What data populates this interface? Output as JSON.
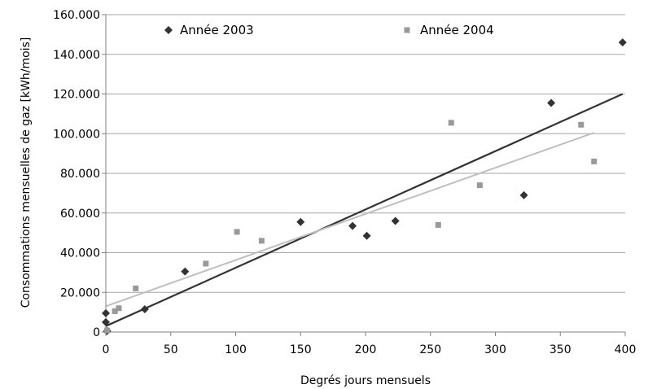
{
  "chart_data": {
    "type": "scatter",
    "xlabel": "Degrés jours mensuels",
    "ylabel": "Consommations mensuelles de gaz [kWh/mois]",
    "xlim": [
      0,
      400
    ],
    "ylim": [
      0,
      160000
    ],
    "x_ticks": [
      0,
      50,
      100,
      150,
      200,
      250,
      300,
      350,
      400
    ],
    "x_tick_labels": [
      "0",
      "50",
      "100",
      "150",
      "200",
      "250",
      "300",
      "350",
      "400"
    ],
    "y_ticks": [
      0,
      20000,
      40000,
      60000,
      80000,
      100000,
      120000,
      140000,
      160000
    ],
    "y_tick_labels": [
      "0",
      "20.000",
      "40.000",
      "60.000",
      "80.000",
      "100.000",
      "120.000",
      "140.000",
      "160.000"
    ],
    "grid": "horizontal",
    "legend_placement": "top",
    "series": [
      {
        "name": "Année 2003",
        "marker": "diamond",
        "color": "#333333",
        "points": [
          [
            0,
            9500
          ],
          [
            0,
            5000
          ],
          [
            1,
            500
          ],
          [
            30,
            11500
          ],
          [
            61,
            30500
          ],
          [
            150,
            55500
          ],
          [
            190,
            53500
          ],
          [
            201,
            48500
          ],
          [
            223,
            56000
          ],
          [
            322,
            69000
          ],
          [
            343,
            115500
          ],
          [
            398,
            146000
          ]
        ],
        "trendline": [
          [
            0,
            3000
          ],
          [
            398,
            120000
          ]
        ],
        "trend_color": "#333333"
      },
      {
        "name": "Année 2004",
        "marker": "square",
        "color": "#999999",
        "points": [
          [
            1,
            800
          ],
          [
            7,
            10500
          ],
          [
            10,
            12000
          ],
          [
            23,
            22000
          ],
          [
            77,
            34500
          ],
          [
            101,
            50500
          ],
          [
            120,
            46000
          ],
          [
            256,
            54000
          ],
          [
            266,
            105500
          ],
          [
            288,
            74000
          ],
          [
            366,
            104500
          ],
          [
            376,
            86000
          ]
        ],
        "trendline": [
          [
            0,
            13000
          ],
          [
            376,
            100500
          ]
        ],
        "trend_color": "#bfbfbf"
      }
    ]
  }
}
